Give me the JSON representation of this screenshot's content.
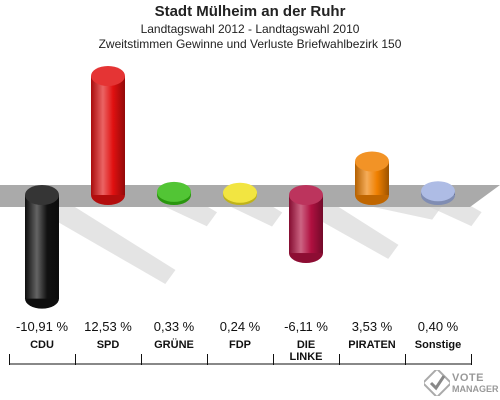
{
  "header": {
    "title": "Stadt Mülheim an der Ruhr",
    "subtitle": "Landtagswahl 2012 - Landtagswahl 2010",
    "subtitle2": "Zweitstimmen Gewinne und Verluste Briefwahlbezirk 150"
  },
  "chart_data": {
    "type": "bar",
    "categories": [
      "CDU",
      "SPD",
      "GRÜNE",
      "FDP",
      "DIE LINKE",
      "PIRATEN",
      "Sonstige"
    ],
    "category_lines": [
      [
        "CDU"
      ],
      [
        "SPD"
      ],
      [
        "GRÜNE"
      ],
      [
        "FDP"
      ],
      [
        "DIE",
        "LINKE"
      ],
      [
        "PIRATEN"
      ],
      [
        "Sonstige"
      ]
    ],
    "values": [
      -10.91,
      12.53,
      0.33,
      0.24,
      -6.11,
      3.53,
      0.4
    ],
    "value_labels": [
      "-10,91 %",
      "12,53 %",
      "0,33 %",
      "0,24 %",
      "-6,11 %",
      "3,53 %",
      "0,40 %"
    ],
    "colors": [
      "#111111",
      "#e01010",
      "#33bb11",
      "#f0e020",
      "#b01040",
      "#f08000",
      "#a0b0e0"
    ],
    "ylim": [
      -11,
      13
    ],
    "grid": false
  },
  "logo": {
    "line1": "VOTE",
    "line2": "MANAGER"
  }
}
